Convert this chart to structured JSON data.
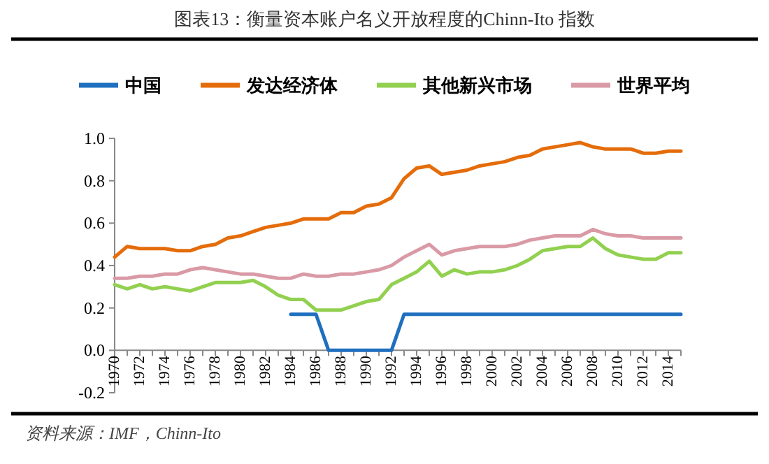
{
  "chart_data": {
    "type": "line",
    "title": "图表13：衡量资本账户名义开放程度的Chinn-Ito 指数",
    "annotations": [
      "资料来源：IMF，Chinn-Ito"
    ],
    "categories": [
      "1970",
      null,
      "1972",
      null,
      "1974",
      null,
      "1976",
      null,
      "1978",
      null,
      "1980",
      null,
      "1982",
      null,
      "1984",
      null,
      "1986",
      null,
      "1988",
      null,
      "1990",
      null,
      "1992",
      null,
      "1994",
      null,
      "1996",
      null,
      "1998",
      null,
      "2000",
      null,
      "2002",
      null,
      "2004",
      null,
      "2006",
      null,
      "2008",
      null,
      "2010",
      null,
      "2012",
      null,
      "2014",
      null
    ],
    "series": [
      {
        "name": "中国",
        "color": "#1f6fbf",
        "values": [
          null,
          null,
          null,
          null,
          null,
          null,
          null,
          null,
          null,
          null,
          null,
          null,
          null,
          null,
          0.17,
          0.17,
          0.17,
          0,
          0,
          0,
          0,
          0,
          0,
          0.17,
          0.17,
          0.17,
          0.17,
          0.17,
          0.17,
          0.17,
          0.17,
          0.17,
          0.17,
          0.17,
          0.17,
          0.17,
          0.17,
          0.17,
          0.17,
          0.17,
          0.17,
          0.17,
          0.17,
          0.17,
          0.17,
          0.17
        ]
      },
      {
        "name": "发达经济体",
        "color": "#e46c0a",
        "values": [
          0.44,
          0.49,
          0.48,
          0.48,
          0.48,
          0.47,
          0.47,
          0.49,
          0.5,
          0.53,
          0.54,
          0.56,
          0.58,
          0.59,
          0.6,
          0.62,
          0.62,
          0.62,
          0.65,
          0.65,
          0.68,
          0.69,
          0.72,
          0.81,
          0.86,
          0.87,
          0.83,
          0.84,
          0.85,
          0.87,
          0.88,
          0.89,
          0.91,
          0.92,
          0.95,
          0.96,
          0.97,
          0.98,
          0.96,
          0.95,
          0.95,
          0.95,
          0.93,
          0.93,
          0.94,
          0.94
        ]
      },
      {
        "name": "其他新兴市场",
        "color": "#92d050",
        "values": [
          0.31,
          0.29,
          0.31,
          0.29,
          0.3,
          0.29,
          0.28,
          0.3,
          0.32,
          0.32,
          0.32,
          0.33,
          0.3,
          0.26,
          0.24,
          0.24,
          0.19,
          0.19,
          0.19,
          0.21,
          0.23,
          0.24,
          0.31,
          0.34,
          0.37,
          0.42,
          0.35,
          0.38,
          0.36,
          0.37,
          0.37,
          0.38,
          0.4,
          0.43,
          0.47,
          0.48,
          0.49,
          0.49,
          0.53,
          0.48,
          0.45,
          0.44,
          0.43,
          0.43,
          0.46,
          0.46
        ]
      },
      {
        "name": "世界平均",
        "color": "#d99aa6",
        "values": [
          0.34,
          0.34,
          0.35,
          0.35,
          0.36,
          0.36,
          0.38,
          0.39,
          0.38,
          0.37,
          0.36,
          0.36,
          0.35,
          0.34,
          0.34,
          0.36,
          0.35,
          0.35,
          0.36,
          0.36,
          0.37,
          0.38,
          0.4,
          0.44,
          0.47,
          0.5,
          0.45,
          0.47,
          0.48,
          0.49,
          0.49,
          0.49,
          0.5,
          0.52,
          0.53,
          0.54,
          0.54,
          0.54,
          0.57,
          0.55,
          0.54,
          0.54,
          0.53,
          0.53,
          0.53,
          0.53
        ]
      }
    ],
    "ylim": [
      -0.2,
      1.0
    ],
    "yticks": [
      -0.2,
      {
        "value": 0,
        "label": "0.0"
      },
      0.2,
      0.4,
      0.6,
      0.8,
      {
        "value": 1.0,
        "label": "1.0"
      }
    ],
    "legend": "top"
  }
}
